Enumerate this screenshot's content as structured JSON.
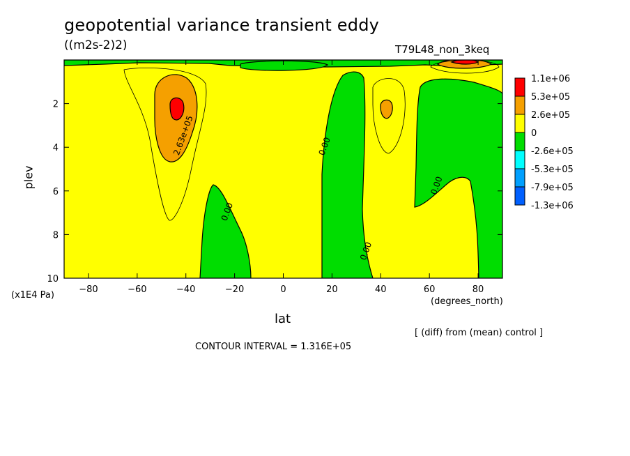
{
  "header": {
    "title": "geopotential variance transient eddy",
    "units": "((m2s-2)2)",
    "run_id": "T79L48_non_3keq"
  },
  "footer": {
    "note": "[ (diff) from (mean) control ]",
    "contour_interval": "CONTOUR INTERVAL = 1.316E+05"
  },
  "colors": {
    "red": "#ff0000",
    "orange": "#f5a000",
    "yellow": "#ffff00",
    "green": "#00dd00",
    "cyan": "#00ffff",
    "mid_blue": "#00a0ff",
    "blue": "#0060ff"
  },
  "chart_data": {
    "type": "contour",
    "xlabel": "lat",
    "xunit": "(degrees_north)",
    "ylabel": "plev",
    "yunit": "(x1E4 Pa)",
    "xlim": [
      -90,
      90
    ],
    "ylim": [
      0,
      10
    ],
    "y_inverted": true,
    "xticks": [
      -80,
      -60,
      -40,
      -20,
      0,
      20,
      40,
      60,
      80
    ],
    "yticks": [
      2,
      4,
      6,
      8,
      10
    ],
    "contour_labels": [
      {
        "text": "2.63e+05",
        "lat": -40,
        "plev": 3.5
      },
      {
        "text": "0.00",
        "lat": -22,
        "plev": 7.0
      },
      {
        "text": "0.00",
        "lat": 18,
        "plev": 4.0
      },
      {
        "text": "0.00",
        "lat": 35,
        "plev": 8.8
      },
      {
        "text": "0.00",
        "lat": 64,
        "plev": 5.8
      }
    ],
    "legend": [
      {
        "label": "1.1e+06",
        "color": "#ff0000"
      },
      {
        "label": "5.3e+05",
        "color": "#f5a000"
      },
      {
        "label": "2.6e+05",
        "color": "#ffff00"
      },
      {
        "label": "0",
        "color": "#00dd00"
      },
      {
        "label": "-2.6e+05",
        "color": "#00ffff"
      },
      {
        "label": "-5.3e+05",
        "color": "#00a0ff"
      },
      {
        "label": "-7.9e+05",
        "color": "#0060ff"
      },
      {
        "label": "-1.3e+06",
        "color": ""
      }
    ]
  }
}
